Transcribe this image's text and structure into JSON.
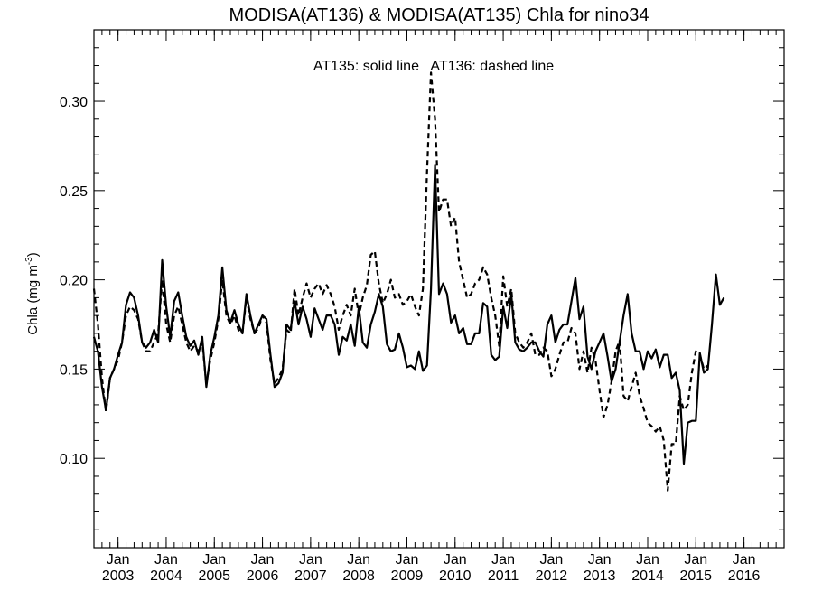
{
  "chart_data": {
    "type": "line",
    "title": "MODISA(AT136) & MODISA(AT135)  Chla for nino34",
    "annotation": "AT135: solid line   AT136: dashed line",
    "ylabel_main": "Chla (mg m",
    "ylabel_sup": "-3",
    "ylabel_close": ")",
    "xlabel": "",
    "xlim": [
      2002.5,
      2016.833
    ],
    "ylim": [
      0.05,
      0.34
    ],
    "yticks": [
      0.1,
      0.15,
      0.2,
      0.25,
      0.3
    ],
    "ytick_labels": [
      "0.10",
      "0.15",
      "0.20",
      "0.25",
      "0.30"
    ],
    "xticks": [
      2003,
      2004,
      2005,
      2006,
      2007,
      2008,
      2009,
      2010,
      2011,
      2012,
      2013,
      2014,
      2015,
      2016
    ],
    "xtick_month": "Jan",
    "xtick_years": [
      "2003",
      "2004",
      "2005",
      "2006",
      "2007",
      "2008",
      "2009",
      "2010",
      "2011",
      "2012",
      "2013",
      "2014",
      "2015",
      "2016"
    ],
    "grid": false,
    "series": [
      {
        "name": "AT135",
        "style": "solid",
        "color": "#000000",
        "start": "2002-07",
        "values": [
          0.168,
          0.16,
          0.14,
          0.127,
          0.145,
          0.15,
          0.158,
          0.165,
          0.186,
          0.193,
          0.19,
          0.18,
          0.165,
          0.162,
          0.165,
          0.172,
          0.165,
          0.211,
          0.185,
          0.168,
          0.188,
          0.193,
          0.18,
          0.168,
          0.163,
          0.166,
          0.158,
          0.168,
          0.14,
          0.158,
          0.168,
          0.18,
          0.207,
          0.183,
          0.176,
          0.183,
          0.175,
          0.17,
          0.192,
          0.18,
          0.17,
          0.175,
          0.18,
          0.178,
          0.158,
          0.14,
          0.142,
          0.148,
          0.175,
          0.172,
          0.188,
          0.175,
          0.185,
          0.178,
          0.168,
          0.184,
          0.178,
          0.172,
          0.18,
          0.18,
          0.175,
          0.158,
          0.168,
          0.166,
          0.175,
          0.163,
          0.185,
          0.165,
          0.162,
          0.175,
          0.182,
          0.192,
          0.185,
          0.164,
          0.16,
          0.161,
          0.17,
          0.162,
          0.151,
          0.152,
          0.15,
          0.16,
          0.149,
          0.152,
          0.195,
          0.264,
          0.192,
          0.198,
          0.192,
          0.176,
          0.18,
          0.17,
          0.173,
          0.164,
          0.164,
          0.17,
          0.17,
          0.187,
          0.185,
          0.158,
          0.155,
          0.157,
          0.185,
          0.173,
          0.192,
          0.165,
          0.161,
          0.16,
          0.162,
          0.165,
          0.165,
          0.16,
          0.157,
          0.175,
          0.18,
          0.165,
          0.172,
          0.175,
          0.175,
          0.188,
          0.201,
          0.178,
          0.185,
          0.157,
          0.15,
          0.16,
          0.165,
          0.17,
          0.157,
          0.143,
          0.15,
          0.165,
          0.18,
          0.192,
          0.17,
          0.16,
          0.16,
          0.15,
          0.16,
          0.156,
          0.161,
          0.151,
          0.158,
          0.158,
          0.145,
          0.148,
          0.138,
          0.097,
          0.12,
          0.121,
          0.121,
          0.159,
          0.148,
          0.15,
          0.175,
          0.203,
          0.186,
          0.19
        ]
      },
      {
        "name": "AT136",
        "style": "dashed",
        "color": "#000000",
        "start": "2002-07",
        "values": [
          0.195,
          0.175,
          0.145,
          0.126,
          0.145,
          0.15,
          0.155,
          0.165,
          0.18,
          0.185,
          0.183,
          0.178,
          0.165,
          0.16,
          0.16,
          0.165,
          0.17,
          0.2,
          0.175,
          0.165,
          0.18,
          0.185,
          0.175,
          0.165,
          0.16,
          0.163,
          0.16,
          0.165,
          0.142,
          0.155,
          0.165,
          0.178,
          0.2,
          0.18,
          0.175,
          0.18,
          0.172,
          0.17,
          0.19,
          0.178,
          0.17,
          0.173,
          0.18,
          0.176,
          0.155,
          0.142,
          0.145,
          0.15,
          0.172,
          0.17,
          0.195,
          0.18,
          0.19,
          0.198,
          0.19,
          0.195,
          0.198,
          0.192,
          0.197,
          0.192,
          0.185,
          0.172,
          0.18,
          0.186,
          0.18,
          0.195,
          0.18,
          0.19,
          0.197,
          0.214,
          0.216,
          0.198,
          0.187,
          0.192,
          0.2,
          0.19,
          0.192,
          0.186,
          0.188,
          0.192,
          0.185,
          0.18,
          0.195,
          0.26,
          0.316,
          0.29,
          0.238,
          0.245,
          0.245,
          0.23,
          0.235,
          0.21,
          0.2,
          0.19,
          0.192,
          0.198,
          0.2,
          0.207,
          0.203,
          0.19,
          0.18,
          0.163,
          0.202,
          0.185,
          0.195,
          0.17,
          0.165,
          0.162,
          0.165,
          0.17,
          0.158,
          0.158,
          0.162,
          0.16,
          0.146,
          0.15,
          0.158,
          0.165,
          0.165,
          0.173,
          0.17,
          0.15,
          0.16,
          0.148,
          0.162,
          0.155,
          0.138,
          0.123,
          0.13,
          0.143,
          0.16,
          0.166,
          0.135,
          0.132,
          0.14,
          0.148,
          0.135,
          0.128,
          0.12,
          0.118,
          0.115,
          0.118,
          0.11,
          0.082,
          0.108,
          0.108,
          0.135,
          0.127,
          0.13,
          0.148,
          0.16,
          0.158,
          0.15,
          0.152
        ]
      }
    ]
  }
}
